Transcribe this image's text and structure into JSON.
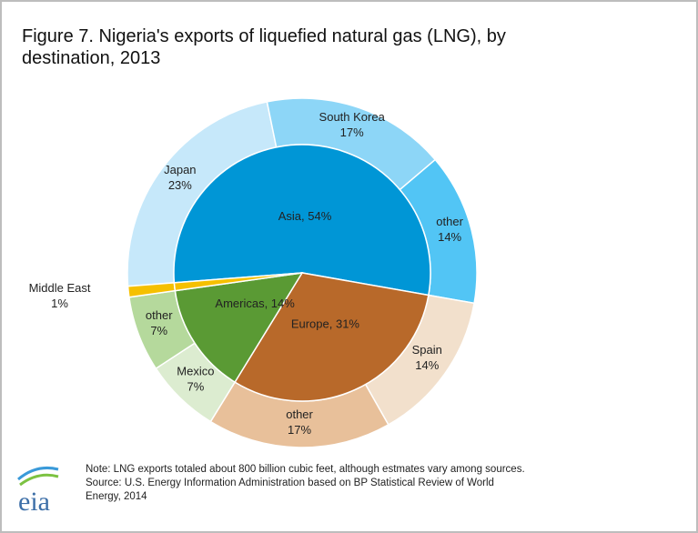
{
  "chart_data": {
    "type": "sunburst",
    "title": [
      "Figure 7. Nigeria's exports of liquefied natural gas (LNG), by",
      "destination, 2013"
    ],
    "inner": {
      "labels": [
        "Asia, 54%",
        "Europe, 31%",
        "Americas, 14%",
        null
      ],
      "values": [
        54,
        31,
        14,
        1
      ],
      "colors": [
        "#0096d6",
        "#b8692a",
        "#5a9a34",
        "#f5c000"
      ]
    },
    "outer": {
      "categories": [
        "Japan",
        "South Korea",
        "other",
        "Spain",
        "other",
        "Mexico",
        "other",
        "Middle East"
      ],
      "values": [
        23,
        17,
        14,
        14,
        17,
        7,
        7,
        1
      ],
      "value_labels": [
        "23%",
        "17%",
        "14%",
        "14%",
        "17%",
        "7%",
        "7%",
        "1%"
      ],
      "colors": [
        "#c6e8fa",
        "#8dd6f7",
        "#52c5f5",
        "#f2e0cc",
        "#e8c09a",
        "#dcecd0",
        "#b5d99c",
        "#f5c000"
      ]
    },
    "note": [
      "Note: LNG exports totaled about 800 billion cubic feet, although estmates vary among sources.",
      "Source: U.S. Energy Information Administration based on BP Statistical Review of World",
      "Energy, 2014"
    ],
    "logo": "eia"
  }
}
